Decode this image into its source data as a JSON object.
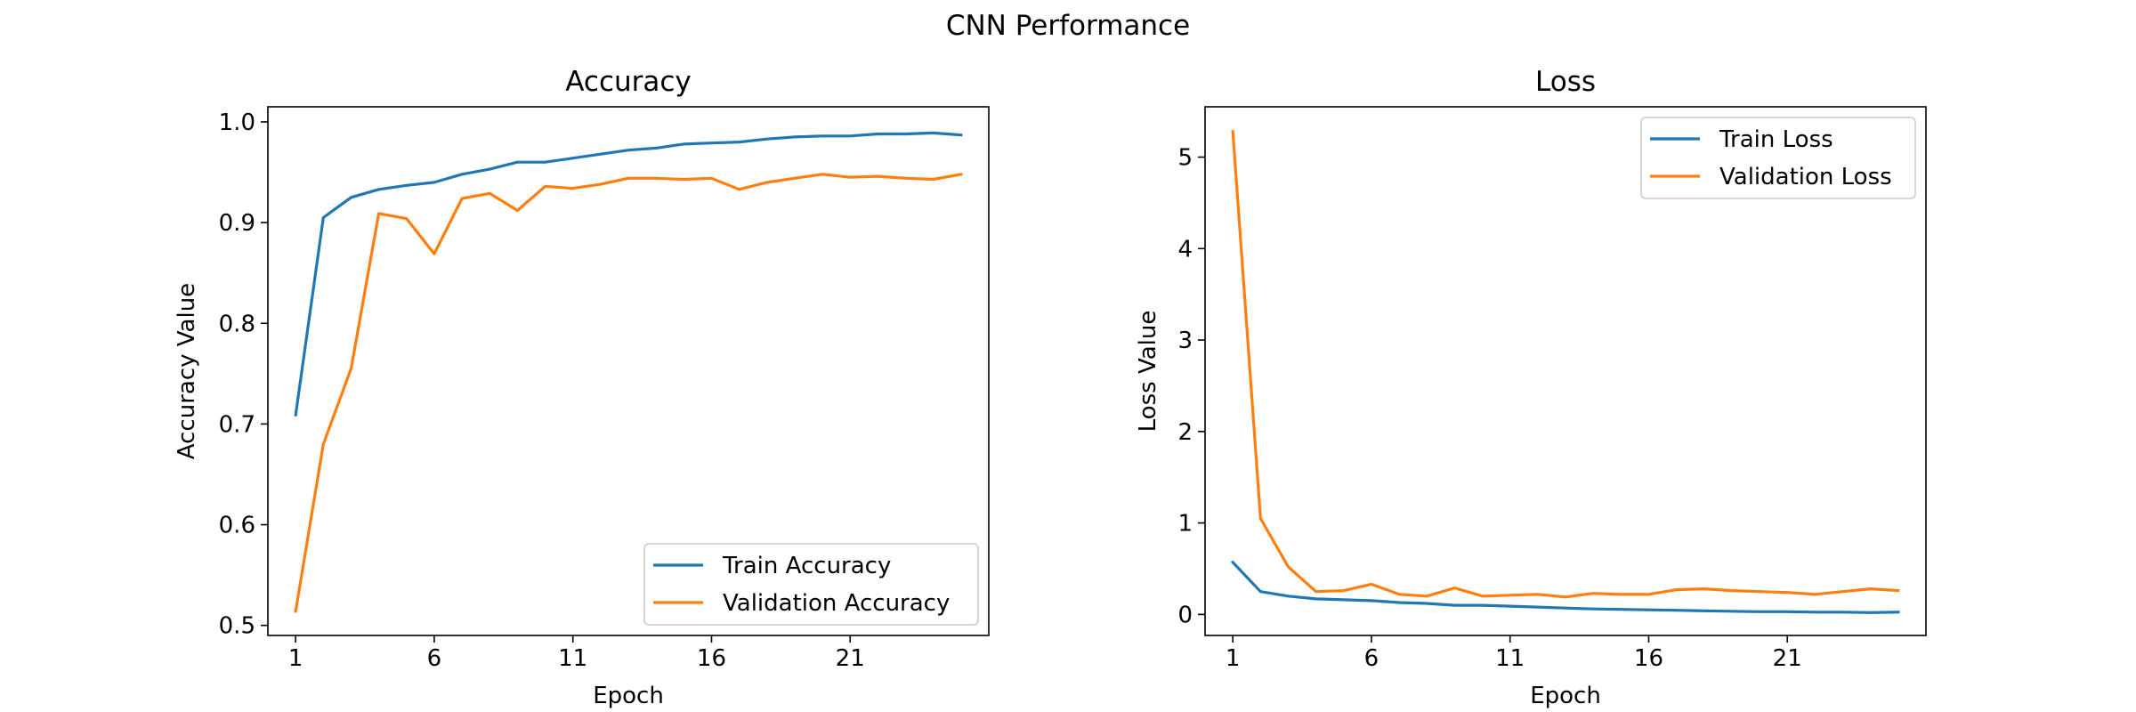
{
  "figure_title": "CNN Performance",
  "colors": {
    "train": "#1f77b4",
    "validation": "#ff7f0e",
    "axis": "#000000",
    "legend_border": "#cccccc"
  },
  "chart_data": [
    {
      "type": "line",
      "title": "Accuracy",
      "xlabel": "Epoch",
      "ylabel": "Accuracy Value",
      "xlim": [
        0,
        26
      ],
      "ylim": [
        0.49,
        1.015
      ],
      "xticks": [
        1,
        6,
        11,
        16,
        21
      ],
      "yticks": [
        0.5,
        0.6,
        0.7,
        0.8,
        0.9,
        1.0
      ],
      "ytick_labels": [
        "0.5",
        "0.6",
        "0.7",
        "0.8",
        "0.9",
        "1.0"
      ],
      "grid": false,
      "legend_position": "lower-right",
      "x": [
        1,
        2,
        3,
        4,
        5,
        6,
        7,
        8,
        9,
        10,
        11,
        12,
        13,
        14,
        15,
        16,
        17,
        18,
        19,
        20,
        21,
        22,
        23,
        24,
        25
      ],
      "series": [
        {
          "name": "Train Accuracy",
          "values": [
            0.709,
            0.905,
            0.925,
            0.933,
            0.937,
            0.94,
            0.948,
            0.953,
            0.96,
            0.96,
            0.964,
            0.968,
            0.972,
            0.974,
            0.978,
            0.979,
            0.98,
            0.983,
            0.985,
            0.986,
            0.986,
            0.988,
            0.988,
            0.989,
            0.987
          ]
        },
        {
          "name": "Validation Accuracy",
          "values": [
            0.514,
            0.68,
            0.755,
            0.909,
            0.904,
            0.869,
            0.924,
            0.929,
            0.912,
            0.936,
            0.934,
            0.938,
            0.944,
            0.944,
            0.943,
            0.944,
            0.933,
            0.94,
            0.944,
            0.948,
            0.945,
            0.946,
            0.944,
            0.943,
            0.948
          ]
        }
      ]
    },
    {
      "type": "line",
      "title": "Loss",
      "xlabel": "Epoch",
      "ylabel": "Loss Value",
      "xlim": [
        0,
        26
      ],
      "ylim": [
        -0.23,
        5.55
      ],
      "xticks": [
        1,
        6,
        11,
        16,
        21
      ],
      "yticks": [
        0,
        1,
        2,
        3,
        4,
        5
      ],
      "ytick_labels": [
        "0",
        "1",
        "2",
        "3",
        "4",
        "5"
      ],
      "grid": false,
      "legend_position": "upper-right",
      "x": [
        1,
        2,
        3,
        4,
        5,
        6,
        7,
        8,
        9,
        10,
        11,
        12,
        13,
        14,
        15,
        16,
        17,
        18,
        19,
        20,
        21,
        22,
        23,
        24,
        25
      ],
      "series": [
        {
          "name": "Train Loss",
          "values": [
            0.57,
            0.25,
            0.2,
            0.17,
            0.16,
            0.15,
            0.13,
            0.12,
            0.1,
            0.1,
            0.09,
            0.08,
            0.07,
            0.06,
            0.055,
            0.05,
            0.045,
            0.04,
            0.035,
            0.03,
            0.03,
            0.025,
            0.025,
            0.02,
            0.025
          ]
        },
        {
          "name": "Validation Loss",
          "values": [
            5.28,
            1.05,
            0.52,
            0.25,
            0.26,
            0.33,
            0.22,
            0.2,
            0.29,
            0.2,
            0.21,
            0.22,
            0.19,
            0.23,
            0.22,
            0.22,
            0.27,
            0.28,
            0.26,
            0.25,
            0.24,
            0.22,
            0.25,
            0.28,
            0.26
          ]
        }
      ]
    }
  ]
}
